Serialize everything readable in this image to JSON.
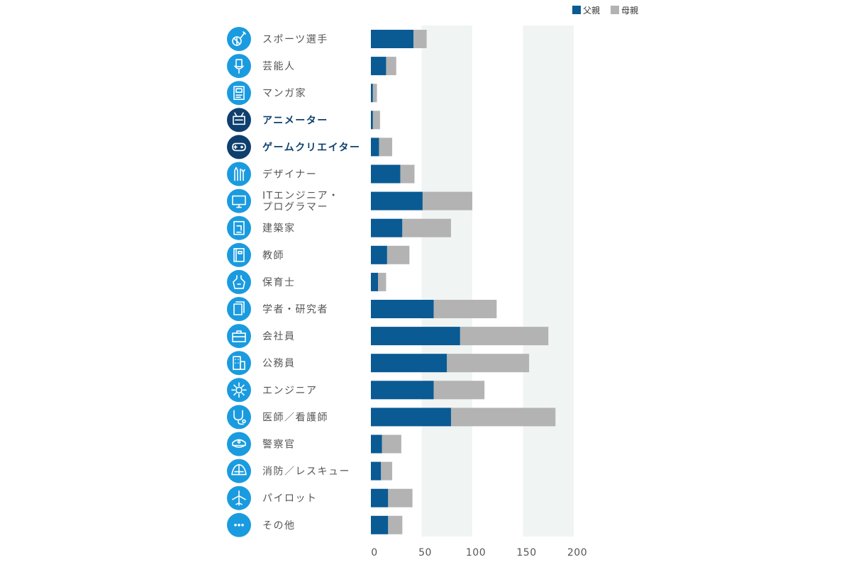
{
  "chart_data": {
    "type": "bar",
    "orientation": "horizontal",
    "stacked": true,
    "xlim": [
      0,
      200
    ],
    "x_ticks": [
      "0",
      "50",
      "100",
      "150",
      "200"
    ],
    "legend": {
      "placement": "top-right"
    },
    "series": [
      {
        "name": "父親",
        "color": "#0a5a94",
        "values": [
          42,
          15,
          2,
          2,
          8,
          29,
          51,
          31,
          16,
          7,
          62,
          88,
          75,
          62,
          79,
          11,
          10,
          17,
          17
        ]
      },
      {
        "name": "母親",
        "color": "#b3b3b3",
        "values": [
          13,
          10,
          4,
          7,
          13,
          14,
          49,
          48,
          22,
          8,
          62,
          87,
          81,
          50,
          103,
          19,
          11,
          24,
          14
        ]
      }
    ],
    "categories": [
      {
        "label": "スポーツ選手",
        "icon": "sports-icon",
        "highlight": false
      },
      {
        "label": "芸能人",
        "icon": "microphone-icon",
        "highlight": false
      },
      {
        "label": "マンガ家",
        "icon": "manga-icon",
        "highlight": false
      },
      {
        "label": "アニメーター",
        "icon": "animation-tablet-icon",
        "highlight": true
      },
      {
        "label": "ゲームクリエイター",
        "icon": "gamepad-icon",
        "highlight": true
      },
      {
        "label": "デザイナー",
        "icon": "pens-icon",
        "highlight": false
      },
      {
        "label": "ITエンジニア・",
        "label2": "プログラマー",
        "icon": "monitor-icon",
        "highlight": false
      },
      {
        "label": "建築家",
        "icon": "blueprint-icon",
        "highlight": false
      },
      {
        "label": "教師",
        "icon": "book-icon",
        "highlight": false
      },
      {
        "label": "保育士",
        "icon": "apron-icon",
        "highlight": false
      },
      {
        "label": "学者・研究者",
        "icon": "papers-icon",
        "highlight": false
      },
      {
        "label": "会社員",
        "icon": "briefcase-icon",
        "highlight": false
      },
      {
        "label": "公務員",
        "icon": "building-icon",
        "highlight": false
      },
      {
        "label": "エンジニア",
        "icon": "gear-icon",
        "highlight": false
      },
      {
        "label": "医師／看護師",
        "icon": "stethoscope-icon",
        "highlight": false
      },
      {
        "label": "警察官",
        "icon": "police-cap-icon",
        "highlight": false
      },
      {
        "label": "消防／レスキュー",
        "icon": "firefighter-helmet-icon",
        "highlight": false
      },
      {
        "label": "パイロット",
        "icon": "airplane-icon",
        "highlight": false
      },
      {
        "label": "その他",
        "icon": "more-dots-icon",
        "highlight": false
      }
    ],
    "colors": {
      "icon_default": "#1a9be0",
      "icon_highlight": "#0e3f6e",
      "grid_band": "#f0f4f3"
    }
  }
}
